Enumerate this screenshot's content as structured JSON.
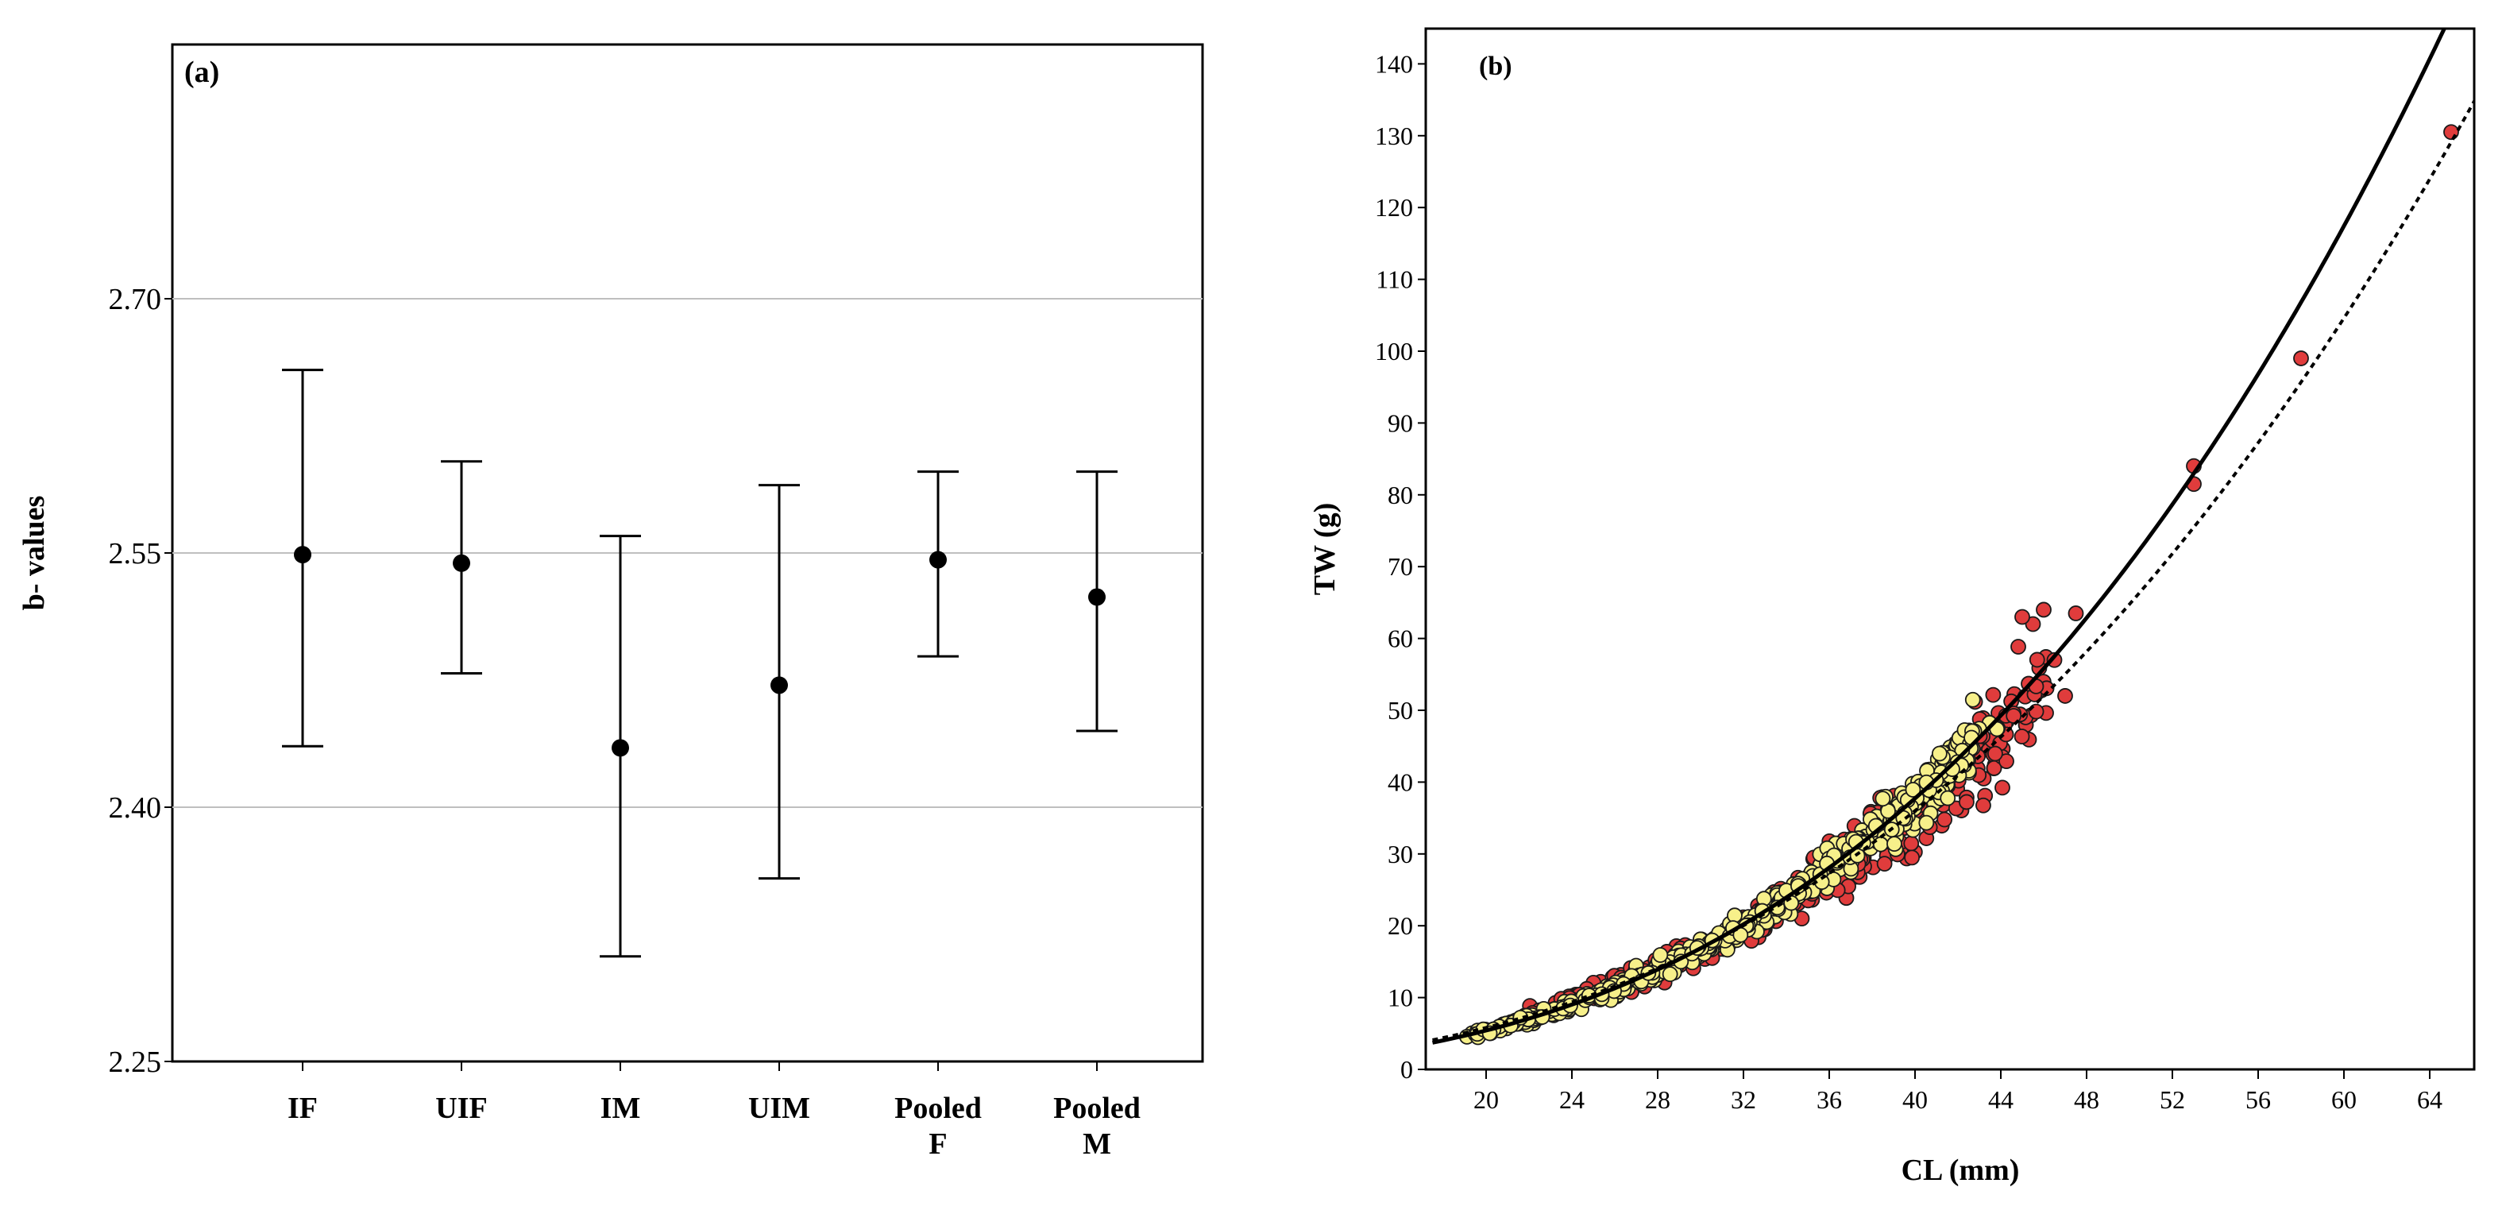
{
  "colors": {
    "gridline": "#bfbfbf",
    "female_points": "#e03c3c",
    "male_points": "#f7f08a",
    "point_edge": "#1a1a1a",
    "line": "#000000"
  },
  "chart_data": [
    {
      "panel": "(a)",
      "type": "errorbar",
      "title": "",
      "xlabel": "",
      "ylabel": "b- values",
      "ylim": [
        2.25,
        2.85
      ],
      "yticks": [
        "2.25",
        "2.40",
        "2.55",
        "2.70"
      ],
      "grid": "horizontal",
      "categories": [
        {
          "line1": "IF",
          "line2": ""
        },
        {
          "line1": "UIF",
          "line2": ""
        },
        {
          "line1": "IM",
          "line2": ""
        },
        {
          "line1": "UIM",
          "line2": ""
        },
        {
          "line1": "Pooled",
          "line2": "F"
        },
        {
          "line1": "Pooled",
          "line2": "M"
        }
      ],
      "values": [
        2.549,
        2.544,
        2.435,
        2.472,
        2.546,
        2.524
      ],
      "lower": [
        2.436,
        2.479,
        2.312,
        2.358,
        2.489,
        2.445
      ],
      "upper": [
        2.658,
        2.604,
        2.56,
        2.59,
        2.598,
        2.598
      ]
    },
    {
      "panel": "(b)",
      "type": "scatter",
      "title": "",
      "xlabel": "CL (mm)",
      "ylabel": "TW (g)",
      "xlim": [
        17.5,
        66.5
      ],
      "ylim": [
        0,
        145
      ],
      "xticks": [
        "20",
        "24",
        "28",
        "32",
        "36",
        "40",
        "44",
        "48",
        "52",
        "56",
        "60",
        "64"
      ],
      "yticks": [
        "0",
        "10",
        "20",
        "30",
        "40",
        "50",
        "60",
        "70",
        "80",
        "90",
        "100",
        "110",
        "120",
        "130",
        "140"
      ],
      "grid": "none",
      "curves": [
        {
          "style": "solid",
          "a": 0.001233,
          "b": 2.8
        },
        {
          "style": "dotted",
          "a": 0.002203,
          "b": 2.63
        }
      ],
      "outliers_red": [
        {
          "x": 65.0,
          "y": 130.5
        },
        {
          "x": 58.0,
          "y": 99.0
        },
        {
          "x": 53.0,
          "y": 84.0
        },
        {
          "x": 53.0,
          "y": 81.5
        },
        {
          "x": 47.5,
          "y": 63.5
        },
        {
          "x": 46.0,
          "y": 64.0
        },
        {
          "x": 45.5,
          "y": 62.0
        },
        {
          "x": 47.0,
          "y": 52.0
        },
        {
          "x": 46.5,
          "y": 57.0
        },
        {
          "x": 45.0,
          "y": 63.0
        }
      ],
      "cluster_red": {
        "xmin": 22,
        "xmax": 46,
        "a": 0.002203,
        "b": 2.63,
        "spread": 0.1,
        "n": 420
      },
      "cluster_yellow": {
        "xmin": 19,
        "xmax": 43,
        "a": 0.001233,
        "b": 2.8,
        "spread": 0.07,
        "n": 520
      }
    }
  ]
}
